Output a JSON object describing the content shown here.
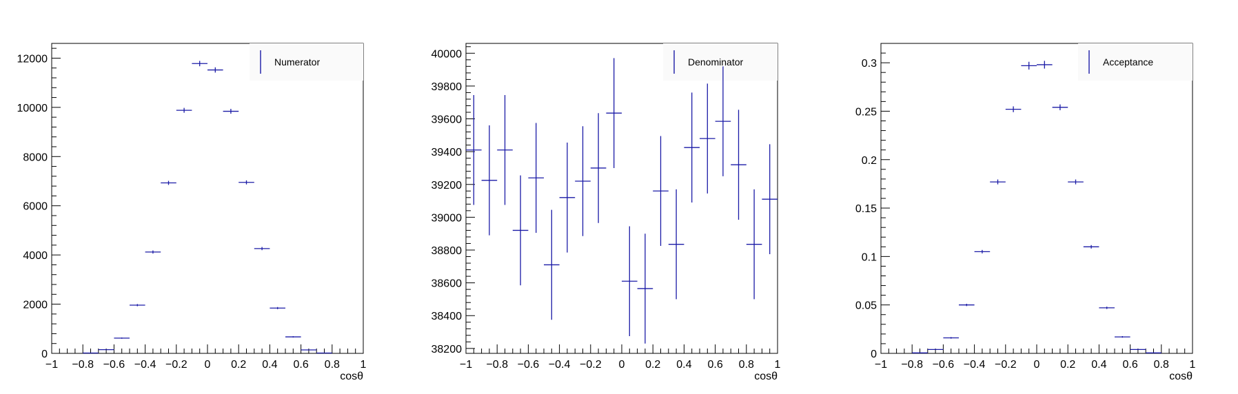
{
  "colors": {
    "marker": "#1a1aa6",
    "axis": "#000000",
    "background": "#ffffff",
    "legend_bg": "#fafafa"
  },
  "chart_data": [
    {
      "type": "scatter",
      "title": "",
      "xlabel": "cosθ",
      "ylabel": "",
      "xlim": [
        -1,
        1
      ],
      "ylim": [
        0,
        12600
      ],
      "legend": {
        "entry": "Numerator",
        "placement": "top-right"
      },
      "x_ticks": [
        -1,
        -0.8,
        -0.6,
        -0.4,
        -0.2,
        0,
        0.2,
        0.4,
        0.6,
        0.8,
        1
      ],
      "x_tick_labels": [
        "−1",
        "−0.8",
        "−0.6",
        "−0.4",
        "−0.2",
        "0",
        "0.2",
        "0.4",
        "0.6",
        "0.8",
        "1"
      ],
      "y_ticks": [
        0,
        2000,
        4000,
        6000,
        8000,
        10000,
        12000
      ],
      "y_tick_labels": [
        "0",
        "2000",
        "4000",
        "6000",
        "8000",
        "10000",
        "12000"
      ],
      "x": [
        -0.75,
        -0.65,
        -0.55,
        -0.45,
        -0.35,
        -0.25,
        -0.15,
        -0.05,
        0.05,
        0.15,
        0.25,
        0.35,
        0.45,
        0.55,
        0.65,
        0.75
      ],
      "values": [
        15,
        150,
        620,
        1960,
        4120,
        6930,
        9880,
        11780,
        11520,
        9840,
        6950,
        4260,
        1840,
        670,
        140,
        15
      ],
      "errors": [
        4,
        12,
        25,
        44,
        64,
        83,
        99,
        109,
        107,
        99,
        83,
        65,
        43,
        26,
        12,
        4
      ]
    },
    {
      "type": "scatter",
      "title": "",
      "xlabel": "cosθ",
      "ylabel": "",
      "xlim": [
        -1,
        1
      ],
      "ylim": [
        38170,
        40060
      ],
      "legend": {
        "entry": "Denominator",
        "placement": "top-right"
      },
      "x_ticks": [
        -1,
        -0.8,
        -0.6,
        -0.4,
        -0.2,
        0,
        0.2,
        0.4,
        0.6,
        0.8,
        1
      ],
      "x_tick_labels": [
        "−1",
        "−0.8",
        "−0.6",
        "−0.4",
        "−0.2",
        "0",
        "0.2",
        "0.4",
        "0.6",
        "0.8",
        "1"
      ],
      "y_ticks": [
        38200,
        38400,
        38600,
        38800,
        39000,
        39200,
        39400,
        39600,
        39800,
        40000
      ],
      "y_tick_labels": [
        "38200",
        "38400",
        "38600",
        "38800",
        "39000",
        "39200",
        "39400",
        "39600",
        "39800",
        "40000"
      ],
      "x": [
        -0.95,
        -0.85,
        -0.75,
        -0.65,
        -0.55,
        -0.45,
        -0.35,
        -0.25,
        -0.15,
        -0.05,
        0.05,
        0.15,
        0.25,
        0.35,
        0.45,
        0.55,
        0.65,
        0.75,
        0.85,
        0.95
      ],
      "values": [
        39410,
        39225,
        39410,
        38920,
        39240,
        38710,
        39120,
        39220,
        39300,
        39635,
        38610,
        38565,
        39160,
        38835,
        39425,
        39480,
        39585,
        39320,
        38835,
        39110
      ],
      "errors": [
        335,
        335,
        335,
        335,
        335,
        335,
        335,
        335,
        335,
        335,
        335,
        335,
        335,
        335,
        335,
        335,
        335,
        335,
        335,
        335
      ]
    },
    {
      "type": "scatter",
      "title": "",
      "xlabel": "cosθ",
      "ylabel": "",
      "xlim": [
        -1,
        1
      ],
      "ylim": [
        0,
        0.32
      ],
      "legend": {
        "entry": "Acceptance",
        "placement": "top-right"
      },
      "x_ticks": [
        -1,
        -0.8,
        -0.6,
        -0.4,
        -0.2,
        0,
        0.2,
        0.4,
        0.6,
        0.8,
        1
      ],
      "x_tick_labels": [
        "−1",
        "−0.8",
        "−0.6",
        "−0.4",
        "−0.2",
        "0",
        "0.2",
        "0.4",
        "0.6",
        "0.8",
        "1"
      ],
      "y_ticks": [
        0,
        0.05,
        0.1,
        0.15,
        0.2,
        0.25,
        0.3
      ],
      "y_tick_labels": [
        "0",
        "0.05",
        "0.1",
        "0.15",
        "0.2",
        "0.25",
        "0.3"
      ],
      "x": [
        -0.75,
        -0.65,
        -0.55,
        -0.45,
        -0.35,
        -0.25,
        -0.15,
        -0.05,
        0.05,
        0.15,
        0.25,
        0.35,
        0.45,
        0.55,
        0.65,
        0.75
      ],
      "values": [
        0.0005,
        0.004,
        0.016,
        0.05,
        0.105,
        0.177,
        0.252,
        0.297,
        0.298,
        0.254,
        0.177,
        0.11,
        0.047,
        0.017,
        0.004,
        0.0005
      ],
      "errors": [
        0.0002,
        0.0005,
        0.0008,
        0.0012,
        0.0018,
        0.0025,
        0.003,
        0.004,
        0.004,
        0.003,
        0.0025,
        0.0018,
        0.0012,
        0.0008,
        0.0005,
        0.0002
      ]
    }
  ]
}
